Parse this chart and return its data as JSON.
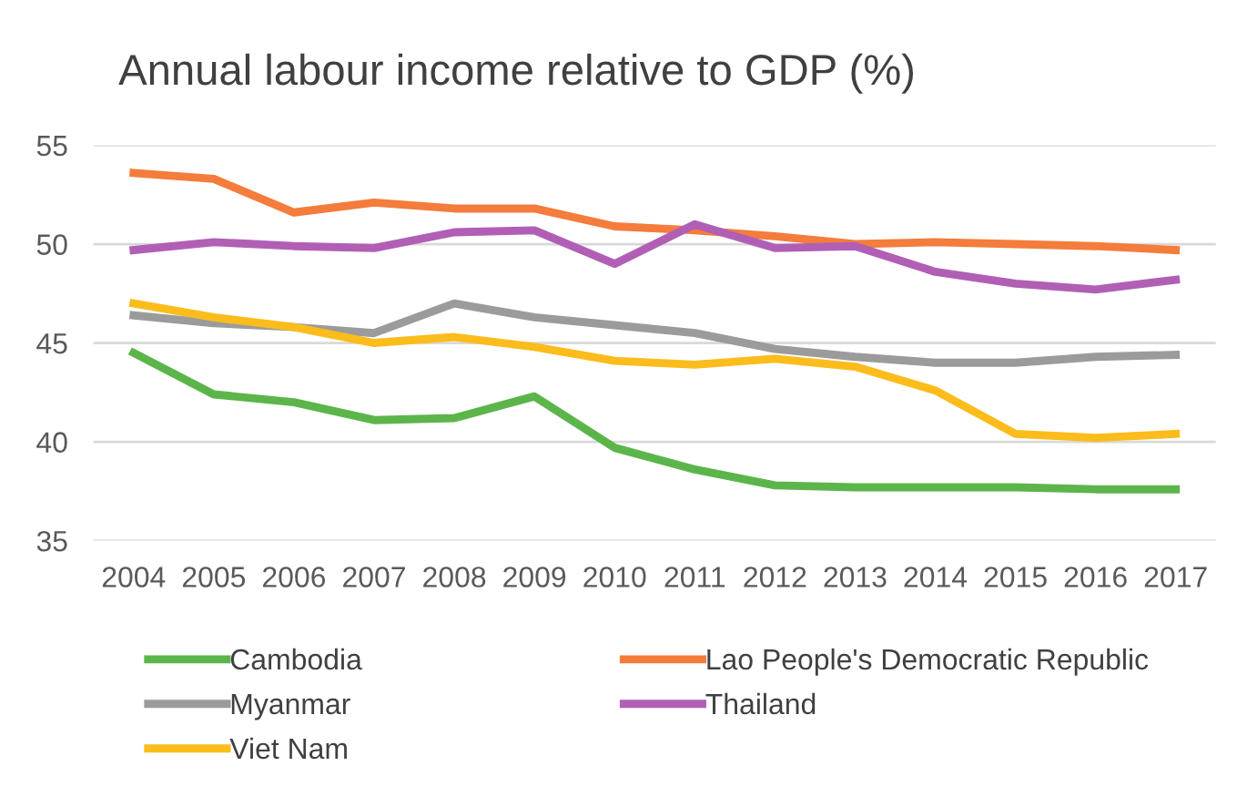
{
  "chart_data": {
    "type": "line",
    "title": "Annual labour income relative to GDP (%)",
    "categories": [
      "2004",
      "2005",
      "2006",
      "2007",
      "2008",
      "2009",
      "2010",
      "2011",
      "2012",
      "2013",
      "2014",
      "2015",
      "2016",
      "2017"
    ],
    "series": [
      {
        "name": "Cambodia",
        "color": "#5cb54a",
        "values": [
          44.5,
          42.4,
          42.0,
          41.1,
          41.2,
          42.3,
          39.7,
          38.6,
          37.8,
          37.7,
          37.7,
          37.7,
          37.6,
          37.6
        ]
      },
      {
        "name": "Lao People's Democratic Republic",
        "color": "#f47c3c",
        "values": [
          53.6,
          53.3,
          51.6,
          52.1,
          51.8,
          51.8,
          50.9,
          50.7,
          50.4,
          50.0,
          50.1,
          50.0,
          49.9,
          49.7
        ]
      },
      {
        "name": "Myanmar",
        "color": "#9b9b9b",
        "values": [
          46.4,
          46.0,
          45.8,
          45.5,
          47.0,
          46.3,
          45.9,
          45.5,
          44.7,
          44.3,
          44.0,
          44.0,
          44.3,
          44.4
        ]
      },
      {
        "name": "Thailand",
        "color": "#b15fb5",
        "values": [
          49.7,
          50.1,
          49.9,
          49.8,
          50.6,
          50.7,
          49.0,
          51.0,
          49.8,
          49.9,
          48.6,
          48.0,
          47.7,
          48.2
        ]
      },
      {
        "name": "Viet Nam",
        "color": "#fbbc1c",
        "values": [
          47.0,
          46.3,
          45.8,
          45.0,
          45.3,
          44.8,
          44.1,
          43.9,
          44.2,
          43.8,
          42.6,
          40.4,
          40.2,
          40.4
        ]
      }
    ],
    "ylim": [
      35,
      55
    ],
    "yticks": [
      35,
      40,
      45,
      50,
      55
    ],
    "grid": "y",
    "legend": "bottom",
    "line_style": "solid",
    "marker": "none"
  }
}
